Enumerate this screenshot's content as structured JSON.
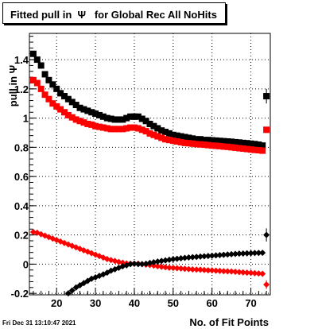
{
  "chart_data": {
    "type": "scatter",
    "title": "Fitted pull in  Ψ   for Global Rec All NoHits",
    "xlabel": "No. of Fit Points",
    "ylabel": "pull in  Ψ",
    "xlim": [
      13,
      75
    ],
    "ylim": [
      -0.21,
      1.58
    ],
    "x_ticks": [
      20,
      30,
      40,
      50,
      60,
      70
    ],
    "y_ticks": [
      -0.2,
      0,
      0.2,
      0.4,
      0.6,
      0.8,
      1,
      1.2,
      1.4
    ],
    "y_tick_labels": [
      "-0.2",
      "0",
      "0.2",
      "0.4",
      "0.6",
      "0.8",
      "1",
      "1.2",
      "1.4"
    ],
    "grid": true,
    "series": [
      {
        "color": "#000000",
        "marker": "square",
        "points": [
          [
            14,
            1.44
          ],
          [
            15,
            1.4
          ],
          [
            16,
            1.36
          ],
          [
            17,
            1.3
          ],
          [
            18,
            1.26
          ],
          [
            19,
            1.23
          ],
          [
            20,
            1.2
          ],
          [
            21,
            1.17
          ],
          [
            22,
            1.15
          ],
          [
            23,
            1.13
          ],
          [
            24,
            1.11
          ],
          [
            25,
            1.09
          ],
          [
            26,
            1.07
          ],
          [
            27,
            1.06
          ],
          [
            28,
            1.05
          ],
          [
            29,
            1.04
          ],
          [
            30,
            1.03
          ],
          [
            31,
            1.02
          ],
          [
            32,
            1.01
          ],
          [
            33,
            1.0
          ],
          [
            34,
            0.995
          ],
          [
            35,
            0.99
          ],
          [
            36,
            0.99
          ],
          [
            37,
            0.99
          ],
          [
            38,
            1.0
          ],
          [
            39,
            1.01
          ],
          [
            40,
            1.01
          ],
          [
            41,
            1.01
          ],
          [
            42,
            0.995
          ],
          [
            43,
            0.98
          ],
          [
            44,
            0.96
          ],
          [
            45,
            0.945
          ],
          [
            46,
            0.93
          ],
          [
            47,
            0.915
          ],
          [
            48,
            0.905
          ],
          [
            49,
            0.895
          ],
          [
            50,
            0.885
          ],
          [
            51,
            0.88
          ],
          [
            52,
            0.875
          ],
          [
            53,
            0.87
          ],
          [
            54,
            0.865
          ],
          [
            55,
            0.86
          ],
          [
            56,
            0.855
          ],
          [
            57,
            0.855
          ],
          [
            58,
            0.85
          ],
          [
            59,
            0.85
          ],
          [
            60,
            0.848
          ],
          [
            61,
            0.846
          ],
          [
            62,
            0.844
          ],
          [
            63,
            0.842
          ],
          [
            64,
            0.84
          ],
          [
            65,
            0.838
          ],
          [
            66,
            0.835
          ],
          [
            67,
            0.833
          ],
          [
            68,
            0.83
          ],
          [
            69,
            0.828
          ],
          [
            70,
            0.825
          ],
          [
            71,
            0.822
          ],
          [
            72,
            0.818
          ],
          [
            73,
            0.812
          ]
        ]
      },
      {
        "color": "#ff0000",
        "marker": "square",
        "points": [
          [
            14,
            1.26
          ],
          [
            15,
            1.24
          ],
          [
            16,
            1.2
          ],
          [
            17,
            1.16
          ],
          [
            18,
            1.13
          ],
          [
            19,
            1.1
          ],
          [
            20,
            1.08
          ],
          [
            21,
            1.06
          ],
          [
            22,
            1.04
          ],
          [
            23,
            1.02
          ],
          [
            24,
            1.005
          ],
          [
            25,
            0.99
          ],
          [
            26,
            0.98
          ],
          [
            27,
            0.97
          ],
          [
            28,
            0.96
          ],
          [
            29,
            0.955
          ],
          [
            30,
            0.945
          ],
          [
            31,
            0.94
          ],
          [
            32,
            0.935
          ],
          [
            33,
            0.93
          ],
          [
            34,
            0.925
          ],
          [
            35,
            0.925
          ],
          [
            36,
            0.925
          ],
          [
            37,
            0.925
          ],
          [
            38,
            0.93
          ],
          [
            39,
            0.935
          ],
          [
            40,
            0.935
          ],
          [
            41,
            0.93
          ],
          [
            42,
            0.92
          ],
          [
            43,
            0.91
          ],
          [
            44,
            0.895
          ],
          [
            45,
            0.885
          ],
          [
            46,
            0.875
          ],
          [
            47,
            0.865
          ],
          [
            48,
            0.855
          ],
          [
            49,
            0.85
          ],
          [
            50,
            0.845
          ],
          [
            51,
            0.84
          ],
          [
            52,
            0.835
          ],
          [
            53,
            0.83
          ],
          [
            54,
            0.828
          ],
          [
            55,
            0.825
          ],
          [
            56,
            0.822
          ],
          [
            57,
            0.82
          ],
          [
            58,
            0.818
          ],
          [
            59,
            0.815
          ],
          [
            60,
            0.812
          ],
          [
            61,
            0.81
          ],
          [
            62,
            0.808
          ],
          [
            63,
            0.805
          ],
          [
            64,
            0.803
          ],
          [
            65,
            0.8
          ],
          [
            66,
            0.797
          ],
          [
            67,
            0.794
          ],
          [
            68,
            0.791
          ],
          [
            69,
            0.788
          ],
          [
            70,
            0.785
          ],
          [
            71,
            0.782
          ],
          [
            72,
            0.78
          ],
          [
            73,
            0.777
          ]
        ]
      },
      {
        "color": "#ff0000",
        "marker": "circle",
        "points": [
          [
            14,
            0.22
          ],
          [
            15,
            0.215
          ],
          [
            16,
            0.205
          ],
          [
            17,
            0.195
          ],
          [
            18,
            0.185
          ],
          [
            19,
            0.175
          ],
          [
            20,
            0.165
          ],
          [
            21,
            0.155
          ],
          [
            22,
            0.145
          ],
          [
            23,
            0.135
          ],
          [
            24,
            0.125
          ],
          [
            25,
            0.115
          ],
          [
            26,
            0.105
          ],
          [
            27,
            0.095
          ],
          [
            28,
            0.085
          ],
          [
            29,
            0.075
          ],
          [
            30,
            0.065
          ],
          [
            31,
            0.055
          ],
          [
            32,
            0.045
          ],
          [
            33,
            0.035
          ],
          [
            34,
            0.028
          ],
          [
            35,
            0.022
          ],
          [
            36,
            0.015
          ],
          [
            37,
            0.01
          ],
          [
            38,
            0.005
          ],
          [
            39,
            0.003
          ],
          [
            40,
            0.003
          ],
          [
            41,
            0.003
          ],
          [
            42,
            0.0
          ],
          [
            43,
            -0.003
          ],
          [
            44,
            -0.006
          ],
          [
            45,
            -0.01
          ],
          [
            46,
            -0.014
          ],
          [
            47,
            -0.018
          ],
          [
            48,
            -0.021
          ],
          [
            49,
            -0.024
          ],
          [
            50,
            -0.026
          ],
          [
            51,
            -0.028
          ],
          [
            52,
            -0.03
          ],
          [
            53,
            -0.032
          ],
          [
            54,
            -0.034
          ],
          [
            55,
            -0.036
          ],
          [
            56,
            -0.037
          ],
          [
            57,
            -0.038
          ],
          [
            58,
            -0.04
          ],
          [
            59,
            -0.042
          ],
          [
            60,
            -0.043
          ],
          [
            61,
            -0.045
          ],
          [
            62,
            -0.046
          ],
          [
            63,
            -0.048
          ],
          [
            64,
            -0.049
          ],
          [
            65,
            -0.05
          ],
          [
            66,
            -0.052
          ],
          [
            67,
            -0.054
          ],
          [
            68,
            -0.056
          ],
          [
            69,
            -0.058
          ],
          [
            70,
            -0.06
          ],
          [
            71,
            -0.062
          ],
          [
            72,
            -0.064
          ],
          [
            73,
            -0.066
          ]
        ]
      },
      {
        "color": "#000000",
        "marker": "circle",
        "points": [
          [
            23,
            -0.2
          ],
          [
            24,
            -0.18
          ],
          [
            25,
            -0.16
          ],
          [
            26,
            -0.145
          ],
          [
            27,
            -0.13
          ],
          [
            28,
            -0.115
          ],
          [
            29,
            -0.1
          ],
          [
            30,
            -0.09
          ],
          [
            31,
            -0.08
          ],
          [
            32,
            -0.07
          ],
          [
            33,
            -0.058
          ],
          [
            34,
            -0.045
          ],
          [
            35,
            -0.035
          ],
          [
            36,
            -0.025
          ],
          [
            37,
            -0.015
          ],
          [
            38,
            -0.008
          ],
          [
            39,
            0.0
          ],
          [
            40,
            0.003
          ],
          [
            41,
            0.0
          ],
          [
            42,
            0.0
          ],
          [
            43,
            0.003
          ],
          [
            44,
            0.008
          ],
          [
            45,
            0.013
          ],
          [
            46,
            0.018
          ],
          [
            47,
            0.022
          ],
          [
            48,
            0.026
          ],
          [
            49,
            0.03
          ],
          [
            50,
            0.034
          ],
          [
            51,
            0.037
          ],
          [
            52,
            0.04
          ],
          [
            53,
            0.043
          ],
          [
            54,
            0.046
          ],
          [
            55,
            0.048
          ],
          [
            56,
            0.05
          ],
          [
            57,
            0.052
          ],
          [
            58,
            0.054
          ],
          [
            59,
            0.056
          ],
          [
            60,
            0.058
          ],
          [
            61,
            0.06
          ],
          [
            62,
            0.062
          ],
          [
            63,
            0.064
          ],
          [
            64,
            0.066
          ],
          [
            65,
            0.068
          ],
          [
            66,
            0.07
          ],
          [
            67,
            0.072
          ],
          [
            68,
            0.073
          ],
          [
            69,
            0.074
          ],
          [
            70,
            0.075
          ],
          [
            71,
            0.076
          ],
          [
            72,
            0.077
          ],
          [
            73,
            0.078
          ]
        ]
      }
    ],
    "outliers": [
      {
        "color": "#000000",
        "marker": "square",
        "x": 74,
        "y": 1.15,
        "err": 0.05
      },
      {
        "color": "#ff0000",
        "marker": "square",
        "x": 74,
        "y": 0.92,
        "err": 0.02
      },
      {
        "color": "#000000",
        "marker": "circle",
        "x": 74,
        "y": 0.2,
        "err": 0.045
      },
      {
        "color": "#ff0000",
        "marker": "circle",
        "x": 74,
        "y": -0.14,
        "err": 0.03
      }
    ]
  },
  "timestamp": "Fri Dec 31 13:10:47 2021"
}
